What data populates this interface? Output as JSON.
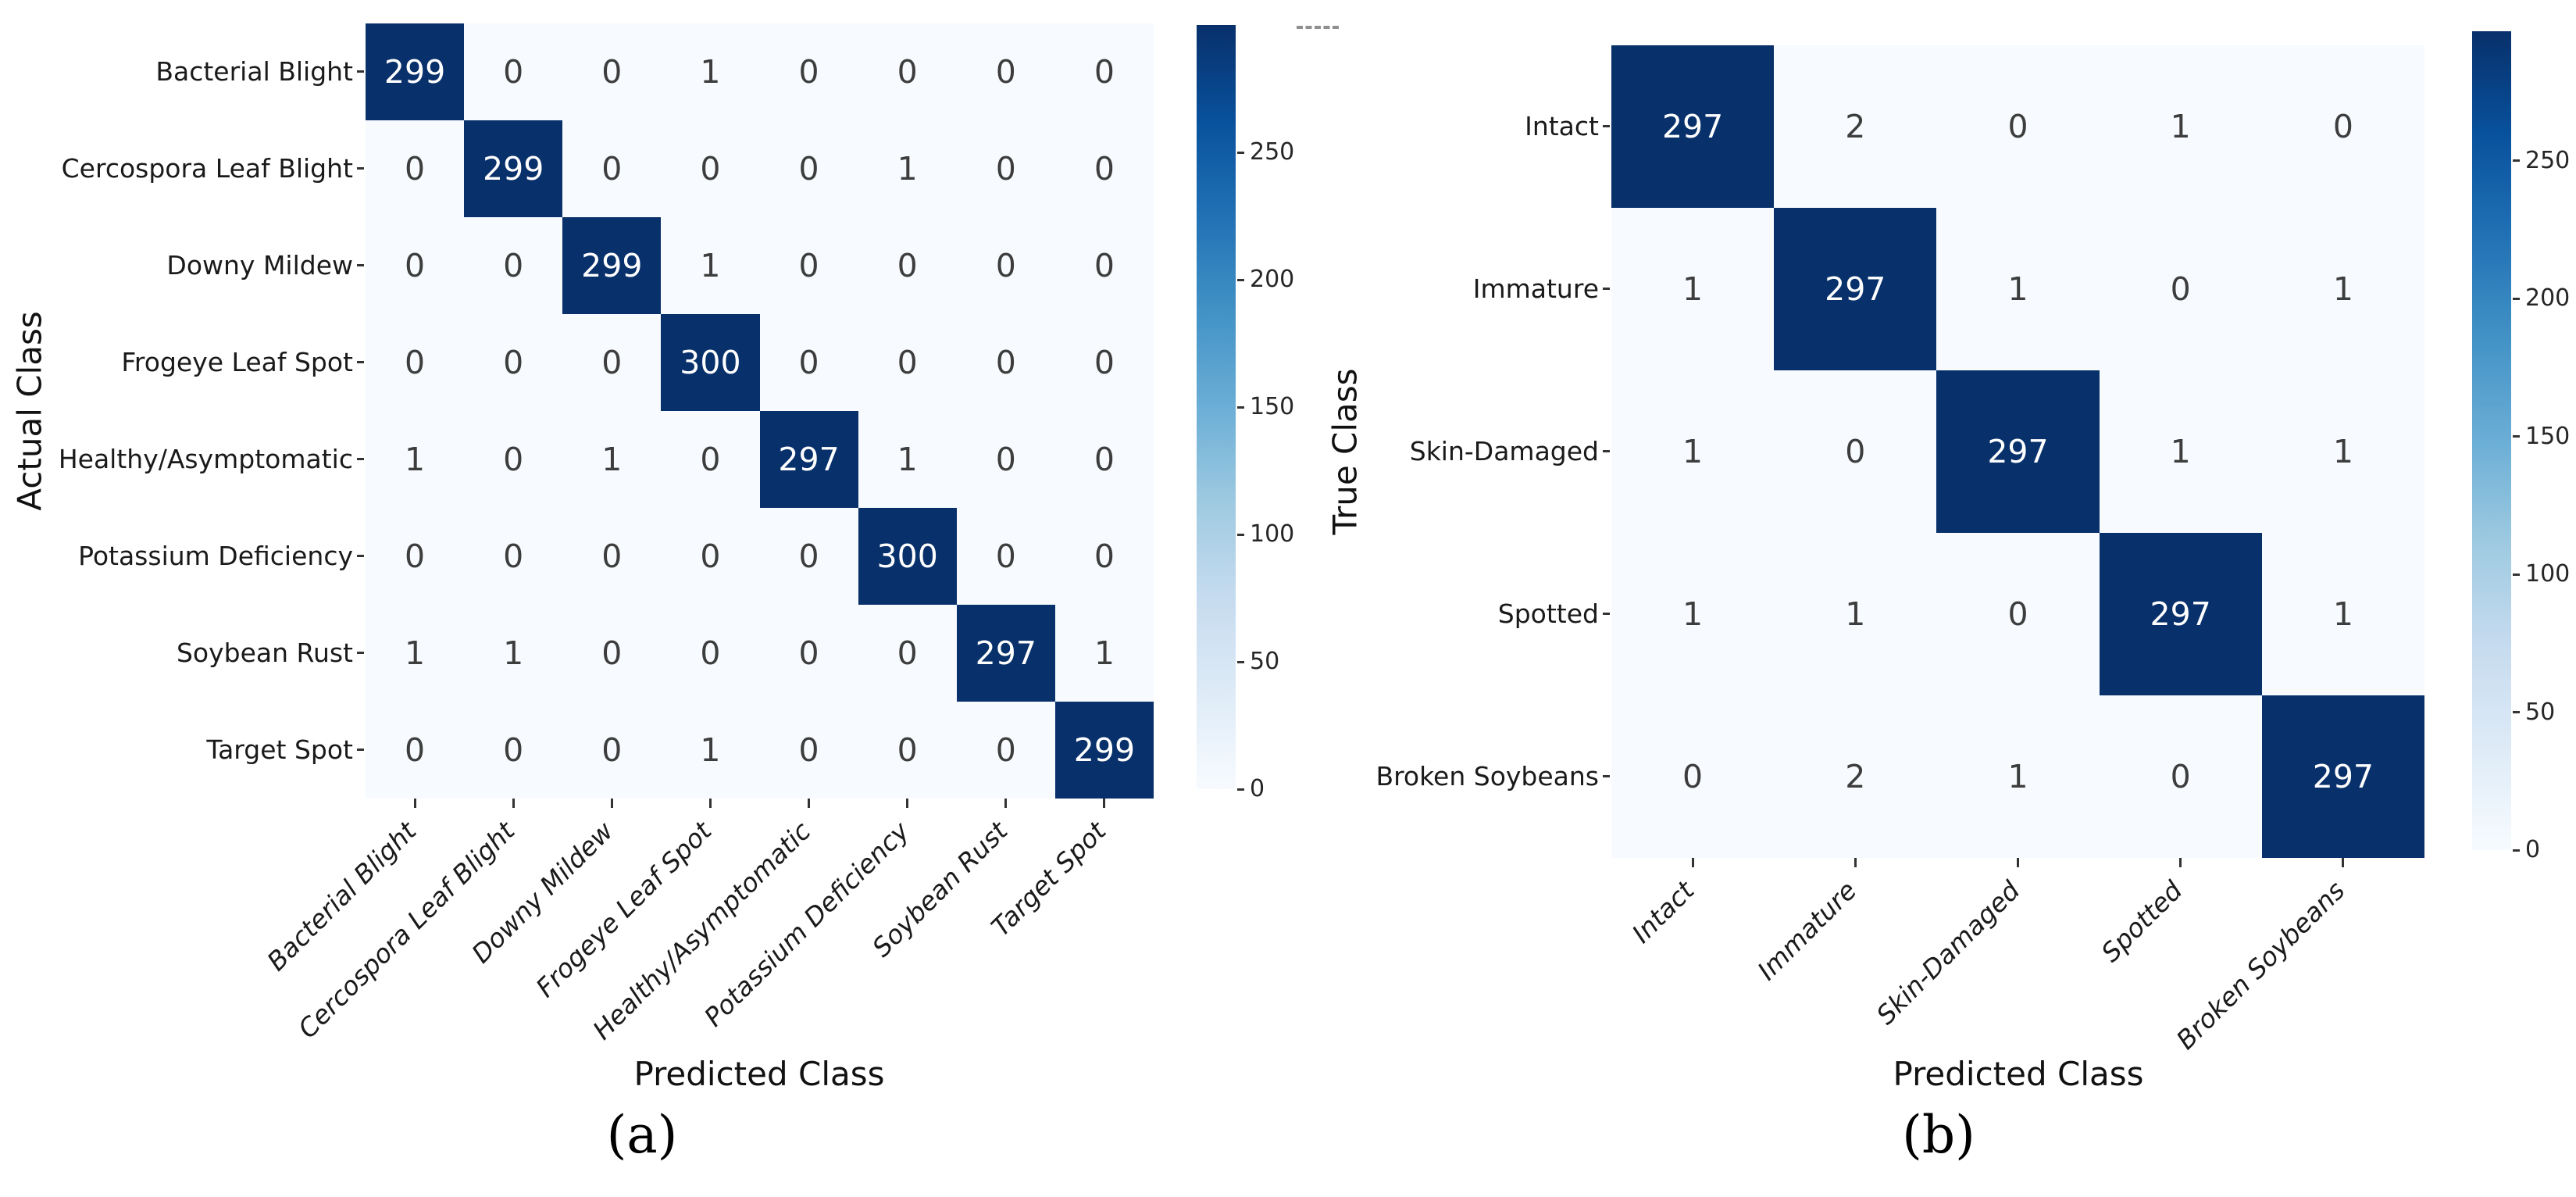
{
  "figure": {
    "description": "Two confusion matrix heatmaps side by side",
    "colors": {
      "cmap_high": "#08306b",
      "cmap_low": "#f7fbff",
      "diag_text": "#ffffff",
      "offdiag_text": "#3d3d3d",
      "tick_color": "#333333"
    }
  },
  "chart_data": [
    {
      "type": "heatmap",
      "caption": "(a)",
      "xlabel": "Predicted Class",
      "ylabel": "Actual Class",
      "x_categories": [
        "Bacterial Blight",
        "Cercospora Leaf Blight",
        "Downy Mildew",
        "Frogeye Leaf Spot",
        "Healthy/Asymptomatic",
        "Potassium Deficiency",
        "Soybean Rust",
        "Target Spot"
      ],
      "y_categories": [
        "Bacterial Blight",
        "Cercospora Leaf Blight",
        "Downy Mildew",
        "Frogeye Leaf Spot",
        "Healthy/Asymptomatic",
        "Potassium Deficiency",
        "Soybean Rust",
        "Target Spot"
      ],
      "values": [
        [
          299,
          0,
          0,
          1,
          0,
          0,
          0,
          0
        ],
        [
          0,
          299,
          0,
          0,
          0,
          1,
          0,
          0
        ],
        [
          0,
          0,
          299,
          1,
          0,
          0,
          0,
          0
        ],
        [
          0,
          0,
          0,
          300,
          0,
          0,
          0,
          0
        ],
        [
          1,
          0,
          1,
          0,
          297,
          1,
          0,
          0
        ],
        [
          0,
          0,
          0,
          0,
          0,
          300,
          0,
          0
        ],
        [
          1,
          1,
          0,
          0,
          0,
          0,
          297,
          1
        ],
        [
          0,
          0,
          0,
          1,
          0,
          0,
          0,
          299
        ]
      ],
      "colormap": "Blues",
      "vmin": 0,
      "vmax": 300,
      "colorbar_ticks": [
        0,
        50,
        100,
        150,
        200,
        250
      ],
      "legend_position": "right-colorbar",
      "grid": false
    },
    {
      "type": "heatmap",
      "caption": "(b)",
      "xlabel": "Predicted Class",
      "ylabel": "True Class",
      "x_categories": [
        "Intact",
        "Immature",
        "Skin-Damaged",
        "Spotted",
        "Broken Soybeans"
      ],
      "y_categories": [
        "Intact",
        "Immature",
        "Skin-Damaged",
        "Spotted",
        "Broken Soybeans"
      ],
      "values": [
        [
          297,
          2,
          0,
          1,
          0
        ],
        [
          1,
          297,
          1,
          0,
          1
        ],
        [
          1,
          0,
          297,
          1,
          1
        ],
        [
          1,
          1,
          0,
          297,
          1
        ],
        [
          0,
          2,
          1,
          0,
          297
        ]
      ],
      "colormap": "Blues",
      "vmin": 0,
      "vmax": 297,
      "colorbar_ticks": [
        0,
        50,
        100,
        150,
        200,
        250
      ],
      "legend_position": "right-colorbar",
      "grid": false
    }
  ]
}
